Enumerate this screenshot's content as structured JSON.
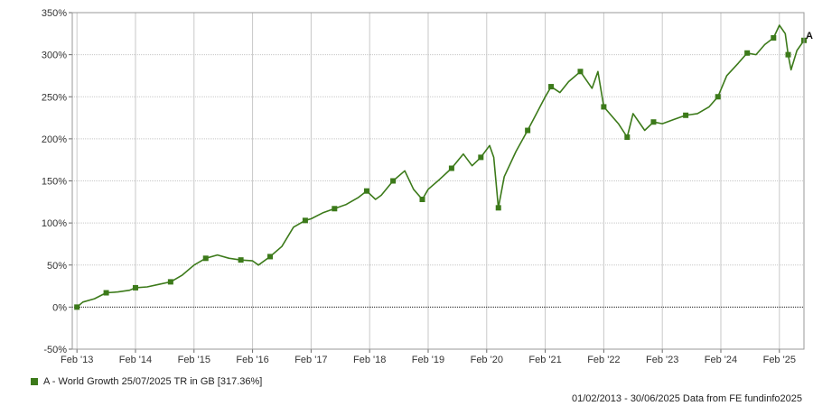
{
  "chart_data": {
    "type": "line",
    "y_tick_labels": [
      "350%",
      "300%",
      "250%",
      "200%",
      "150%",
      "100%",
      "50%",
      "0%",
      "-50%"
    ],
    "y_ticks": [
      350,
      300,
      250,
      200,
      150,
      100,
      50,
      0,
      -50
    ],
    "ylim": [
      -50,
      350
    ],
    "x_tick_labels": [
      "Feb '13",
      "Feb '14",
      "Feb '15",
      "Feb '16",
      "Feb '17",
      "Feb '18",
      "Feb '19",
      "Feb '20",
      "Feb '21",
      "Feb '22",
      "Feb '23",
      "Feb '24",
      "Feb '25"
    ],
    "x_ticks": [
      2013.0,
      2014.0,
      2015.0,
      2016.0,
      2017.0,
      2018.0,
      2019.0,
      2020.0,
      2021.0,
      2022.0,
      2023.0,
      2024.0,
      2025.0
    ],
    "xlim": [
      2012.92,
      2025.42
    ],
    "grid": true,
    "series": [
      {
        "name": "A - World Growth 25/07/2025 TR in GB [317.36%]",
        "end_label": "A",
        "color": "#3c7a1a",
        "x": [
          2013.0,
          2013.1,
          2013.3,
          2013.5,
          2013.7,
          2013.9,
          2014.0,
          2014.2,
          2014.4,
          2014.6,
          2014.8,
          2015.0,
          2015.2,
          2015.4,
          2015.6,
          2015.8,
          2016.0,
          2016.1,
          2016.3,
          2016.5,
          2016.7,
          2016.9,
          2017.0,
          2017.2,
          2017.4,
          2017.6,
          2017.8,
          2017.95,
          2018.1,
          2018.2,
          2018.4,
          2018.6,
          2018.75,
          2018.9,
          2019.0,
          2019.2,
          2019.4,
          2019.6,
          2019.75,
          2019.9,
          2020.05,
          2020.12,
          2020.2,
          2020.3,
          2020.5,
          2020.7,
          2020.85,
          2021.0,
          2021.1,
          2021.25,
          2021.4,
          2021.6,
          2021.8,
          2021.9,
          2022.0,
          2022.1,
          2022.25,
          2022.4,
          2022.5,
          2022.7,
          2022.85,
          2023.0,
          2023.2,
          2023.4,
          2023.6,
          2023.8,
          2023.95,
          2024.1,
          2024.3,
          2024.45,
          2024.6,
          2024.75,
          2024.9,
          2025.0,
          2025.1,
          2025.15,
          2025.2,
          2025.3,
          2025.42
        ],
        "y": [
          0,
          6,
          10,
          17,
          18,
          20,
          23,
          24,
          27,
          30,
          38,
          50,
          58,
          62,
          58,
          56,
          55,
          50,
          60,
          72,
          95,
          103,
          105,
          112,
          117,
          122,
          130,
          138,
          128,
          133,
          150,
          162,
          140,
          128,
          140,
          152,
          165,
          182,
          168,
          178,
          192,
          178,
          118,
          155,
          185,
          210,
          230,
          250,
          262,
          255,
          268,
          280,
          260,
          280,
          238,
          230,
          218,
          202,
          230,
          210,
          220,
          218,
          223,
          228,
          230,
          238,
          250,
          275,
          290,
          302,
          300,
          312,
          320,
          335,
          325,
          300,
          282,
          305,
          317
        ]
      }
    ],
    "legend": "bottom-left",
    "caption": "01/02/2013 - 30/06/2025 Data from FE fundinfo2025"
  }
}
